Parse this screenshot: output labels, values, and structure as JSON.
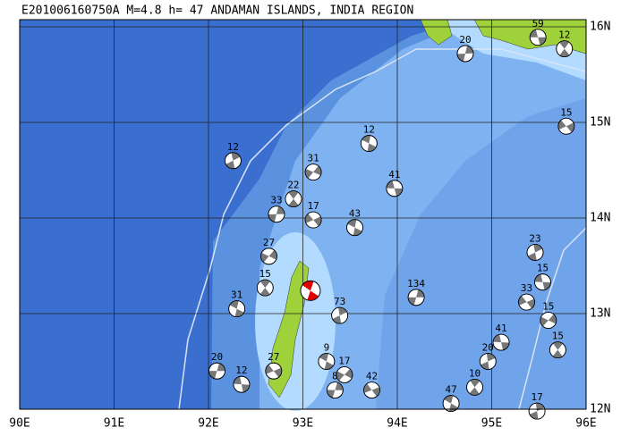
{
  "title": "E201006160750A  M=4.8  h= 47  ANDAMAN ISLANDS, INDIA REGION",
  "lon_ticks": [
    {
      "value": 90,
      "label": "90E"
    },
    {
      "value": 91,
      "label": "91E"
    },
    {
      "value": 92,
      "label": "92E"
    },
    {
      "value": 93,
      "label": "93E"
    },
    {
      "value": 94,
      "label": "94E"
    },
    {
      "value": 95,
      "label": "95E"
    },
    {
      "value": 96,
      "label": "96E"
    }
  ],
  "lat_ticks": [
    {
      "value": 12,
      "label": "12N"
    },
    {
      "value": 13,
      "label": "13N"
    },
    {
      "value": 14,
      "label": "14N"
    },
    {
      "value": 15,
      "label": "15N"
    },
    {
      "value": 16,
      "label": "16N"
    }
  ],
  "events": [
    {
      "label": "59",
      "lon": 95.49,
      "lat": 15.89
    },
    {
      "label": "12",
      "lon": 95.77,
      "lat": 15.77
    },
    {
      "label": "20",
      "lon": 94.72,
      "lat": 15.72
    },
    {
      "label": "15",
      "lon": 95.79,
      "lat": 14.96
    },
    {
      "label": "12",
      "lon": 93.7,
      "lat": 14.78
    },
    {
      "label": "12",
      "lon": 92.26,
      "lat": 14.6
    },
    {
      "label": "31",
      "lon": 93.11,
      "lat": 14.48
    },
    {
      "label": "41",
      "lon": 93.97,
      "lat": 14.31
    },
    {
      "label": "22",
      "lon": 92.9,
      "lat": 14.2
    },
    {
      "label": "33",
      "lon": 92.72,
      "lat": 14.04
    },
    {
      "label": "17",
      "lon": 93.11,
      "lat": 13.98
    },
    {
      "label": "43",
      "lon": 93.55,
      "lat": 13.9
    },
    {
      "label": "23",
      "lon": 95.46,
      "lat": 13.64
    },
    {
      "label": "27",
      "lon": 92.64,
      "lat": 13.6
    },
    {
      "label": "15",
      "lon": 95.54,
      "lat": 13.33
    },
    {
      "label": "15",
      "lon": 92.6,
      "lat": 13.27
    },
    {
      "label": "134",
      "lon": 94.2,
      "lat": 13.17
    },
    {
      "label": "33",
      "lon": 95.37,
      "lat": 13.12
    },
    {
      "label": "31",
      "lon": 92.3,
      "lat": 13.05
    },
    {
      "label": "73",
      "lon": 93.39,
      "lat": 12.98
    },
    {
      "label": "15",
      "lon": 95.6,
      "lat": 12.93
    },
    {
      "label": "41",
      "lon": 95.1,
      "lat": 12.7
    },
    {
      "label": "15",
      "lon": 95.7,
      "lat": 12.62
    },
    {
      "label": "20",
      "lon": 92.09,
      "lat": 12.4
    },
    {
      "label": "27",
      "lon": 92.69,
      "lat": 12.4
    },
    {
      "label": "9",
      "lon": 93.25,
      "lat": 12.5
    },
    {
      "label": "20",
      "lon": 94.96,
      "lat": 12.5
    },
    {
      "label": "17",
      "lon": 93.44,
      "lat": 12.36
    },
    {
      "label": "12",
      "lon": 92.35,
      "lat": 12.26
    },
    {
      "label": "10",
      "lon": 94.82,
      "lat": 12.23
    },
    {
      "label": "8",
      "lon": 93.34,
      "lat": 12.2
    },
    {
      "label": "42",
      "lon": 93.73,
      "lat": 12.2
    },
    {
      "label": "47",
      "lon": 94.57,
      "lat": 12.06
    },
    {
      "label": "17",
      "lon": 95.48,
      "lat": 11.98
    }
  ],
  "main_event": {
    "lon": 93.08,
    "lat": 13.24
  }
}
